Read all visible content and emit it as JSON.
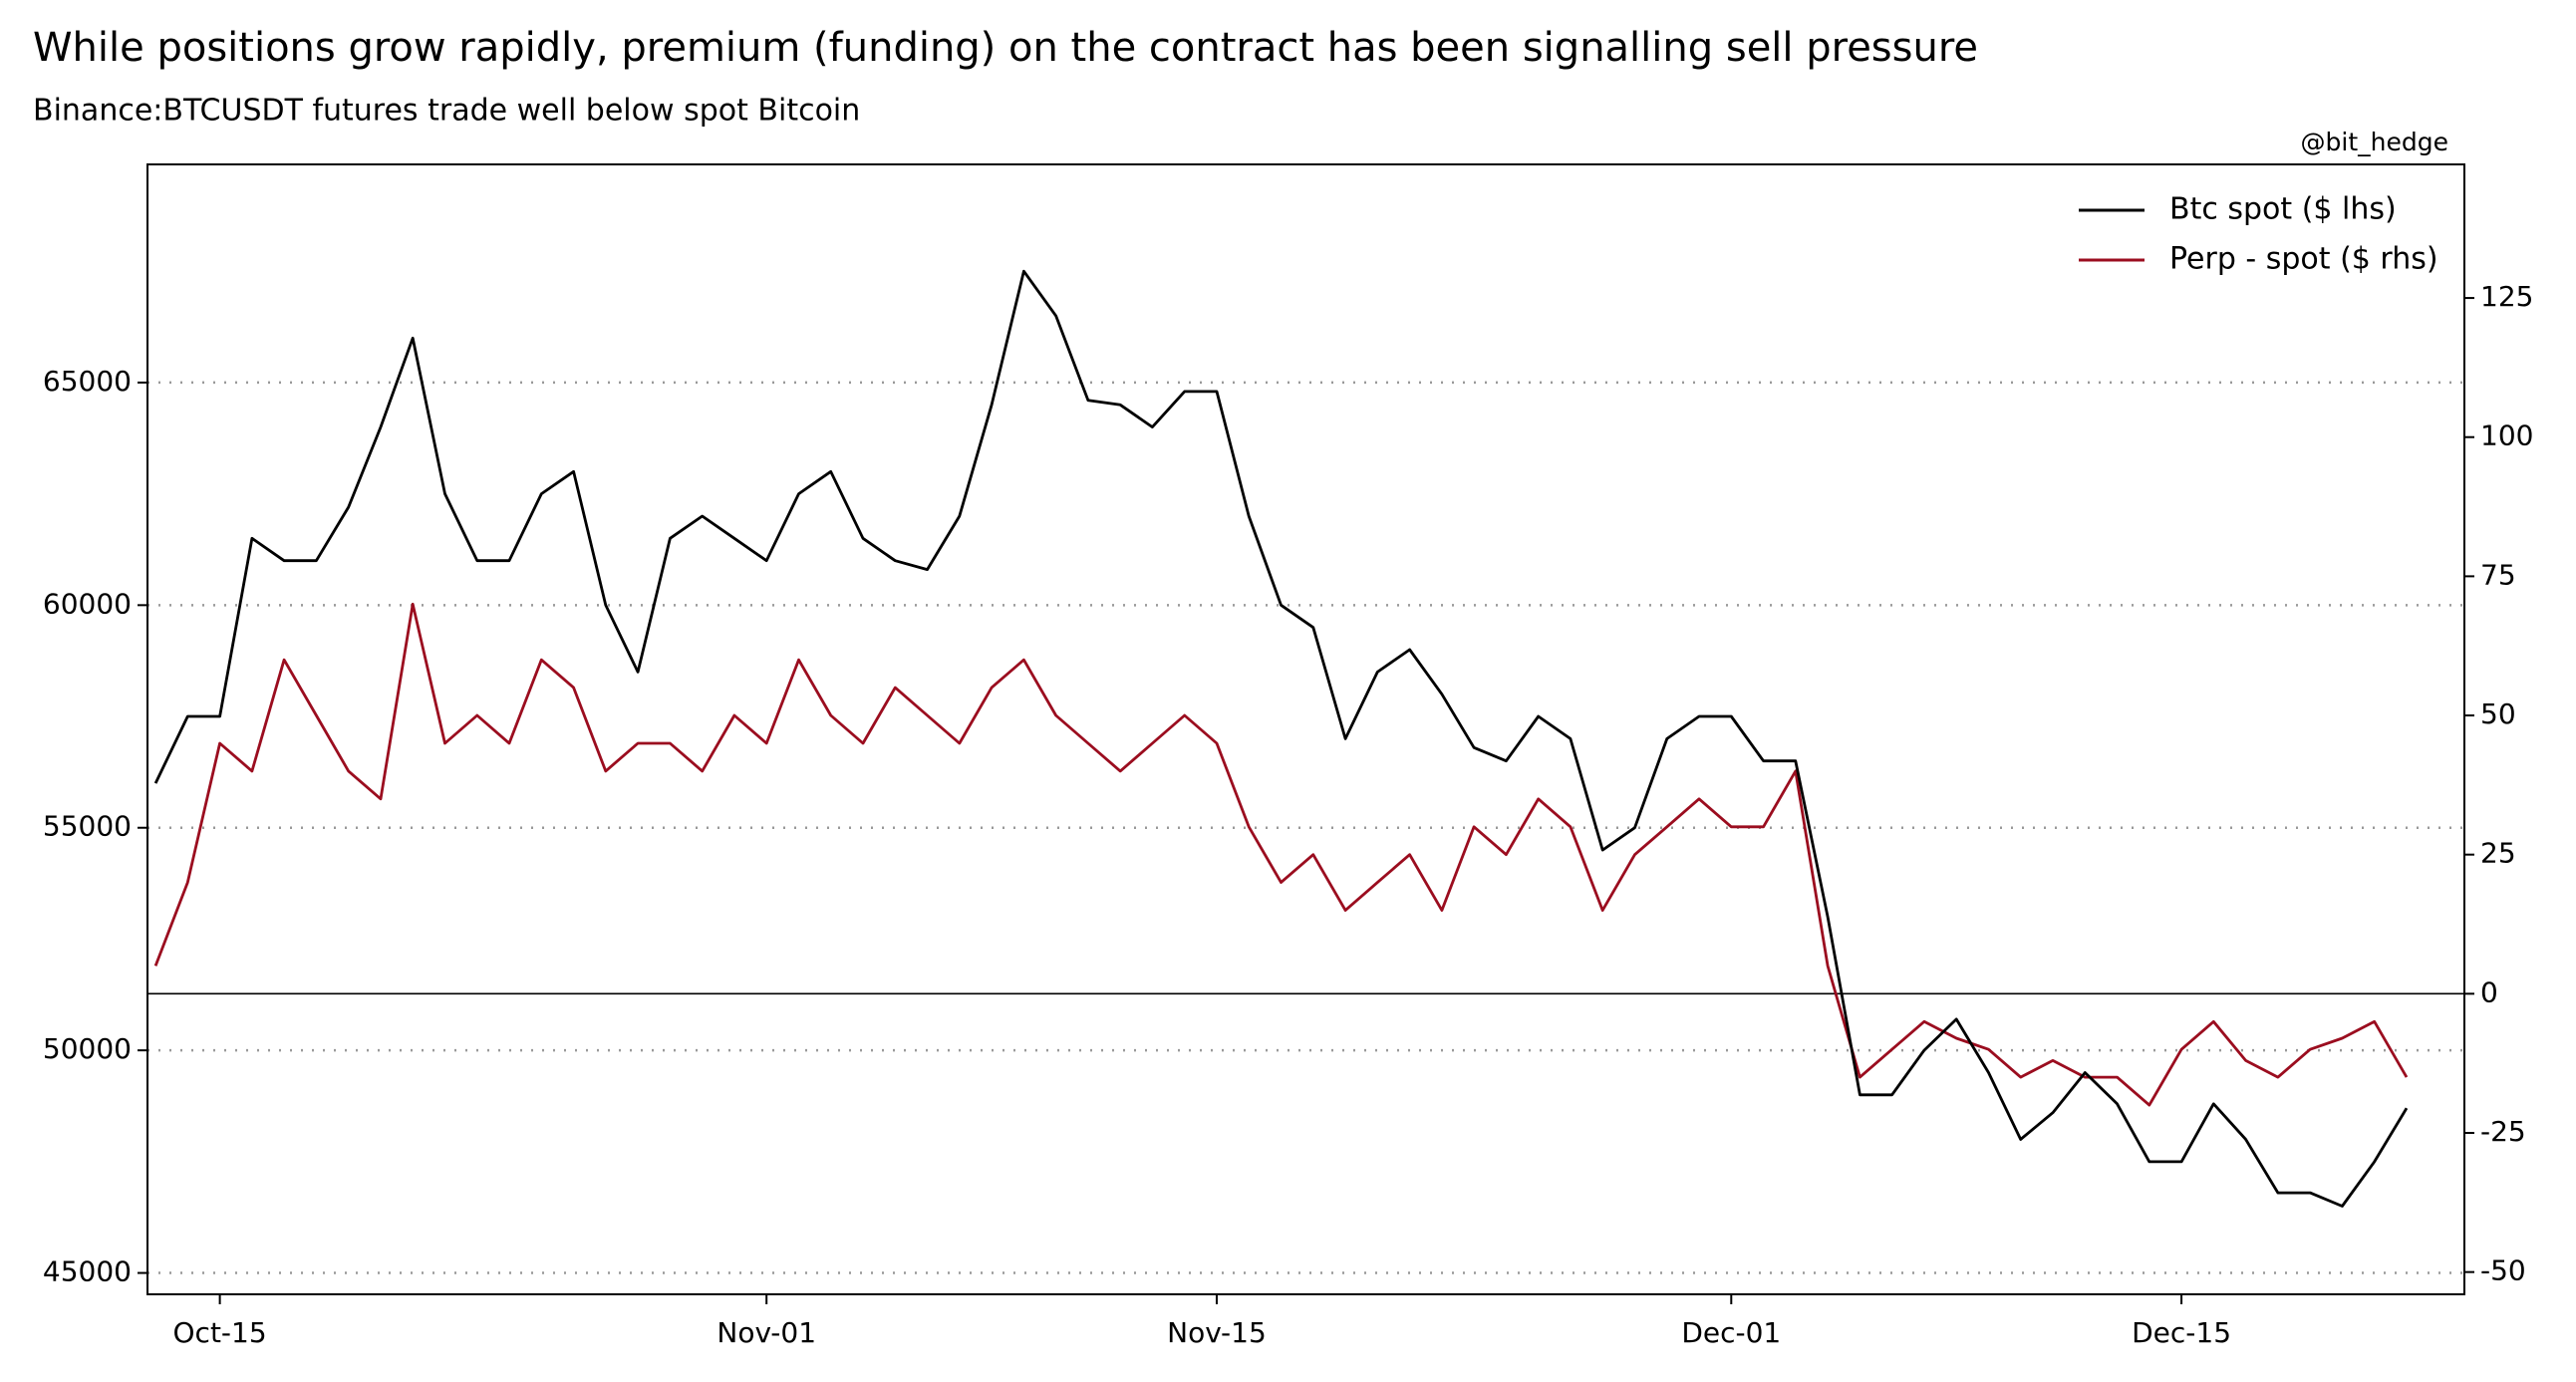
{
  "chart_data": {
    "type": "line",
    "title": "While positions grow rapidly, premium (funding) on the contract has been signalling sell pressure",
    "subtitle": "Binance:BTCUSDT futures trade well below spot Bitcoin",
    "annotation": "@bit_hedge",
    "x": [
      "Oct-13",
      "Oct-14",
      "Oct-15",
      "Oct-16",
      "Oct-17",
      "Oct-18",
      "Oct-19",
      "Oct-20",
      "Oct-21",
      "Oct-22",
      "Oct-23",
      "Oct-24",
      "Oct-25",
      "Oct-26",
      "Oct-27",
      "Oct-28",
      "Oct-29",
      "Oct-30",
      "Oct-31",
      "Nov-01",
      "Nov-02",
      "Nov-03",
      "Nov-04",
      "Nov-05",
      "Nov-06",
      "Nov-07",
      "Nov-08",
      "Nov-09",
      "Nov-10",
      "Nov-11",
      "Nov-12",
      "Nov-13",
      "Nov-14",
      "Nov-15",
      "Nov-16",
      "Nov-17",
      "Nov-18",
      "Nov-19",
      "Nov-20",
      "Nov-21",
      "Nov-22",
      "Nov-23",
      "Nov-24",
      "Nov-25",
      "Nov-26",
      "Nov-27",
      "Nov-28",
      "Nov-29",
      "Nov-30",
      "Dec-01",
      "Dec-02",
      "Dec-03",
      "Dec-04",
      "Dec-05",
      "Dec-06",
      "Dec-07",
      "Dec-08",
      "Dec-09",
      "Dec-10",
      "Dec-11",
      "Dec-12",
      "Dec-13",
      "Dec-14",
      "Dec-15",
      "Dec-16",
      "Dec-17",
      "Dec-18",
      "Dec-19",
      "Dec-20",
      "Dec-21",
      "Dec-22"
    ],
    "xticks": [
      "Oct-15",
      "Nov-01",
      "Nov-15",
      "Dec-01",
      "Dec-15"
    ],
    "series": [
      {
        "name": "Btc spot ($ lhs)",
        "color": "#000000",
        "axis": "y",
        "values": [
          56000,
          57500,
          57500,
          61500,
          61000,
          61000,
          62200,
          64000,
          66000,
          62500,
          61000,
          61000,
          62500,
          63000,
          60000,
          58500,
          61500,
          62000,
          61500,
          61000,
          62500,
          63000,
          61500,
          61000,
          60800,
          62000,
          64500,
          67500,
          66500,
          64600,
          64500,
          64000,
          64800,
          64800,
          62000,
          60000,
          59500,
          57000,
          58500,
          59000,
          58000,
          56800,
          56500,
          57500,
          57000,
          54500,
          55000,
          57000,
          57500,
          57500,
          56500,
          56500,
          53000,
          49000,
          49000,
          50000,
          50700,
          49500,
          48000,
          48600,
          49500,
          48800,
          47500,
          47500,
          48800,
          48000,
          46800,
          46800,
          46500,
          47500,
          48700
        ]
      },
      {
        "name": "Perp - spot ($ rhs)",
        "color": "#9b0d1f",
        "axis": "y2",
        "values": [
          5,
          20,
          45,
          40,
          60,
          50,
          40,
          35,
          70,
          45,
          50,
          45,
          60,
          55,
          40,
          45,
          45,
          40,
          50,
          45,
          60,
          50,
          45,
          55,
          50,
          45,
          55,
          60,
          50,
          45,
          40,
          45,
          50,
          45,
          30,
          20,
          25,
          15,
          20,
          25,
          15,
          30,
          25,
          35,
          30,
          15,
          25,
          30,
          35,
          30,
          30,
          40,
          5,
          -15,
          -10,
          -5,
          -8,
          -10,
          -15,
          -12,
          -15,
          -15,
          -20,
          -10,
          -5,
          -12,
          -15,
          -10,
          -8,
          -5,
          -15
        ]
      }
    ],
    "ylim": [
      44520,
      69900
    ],
    "yticks": [
      45000,
      50000,
      55000,
      60000,
      65000
    ],
    "y2lim": [
      -54,
      149
    ],
    "y2ticks": [
      -50,
      -25,
      0,
      25,
      50,
      75,
      100,
      125
    ],
    "grid": true,
    "zero_line": true,
    "legend": "upper right"
  }
}
